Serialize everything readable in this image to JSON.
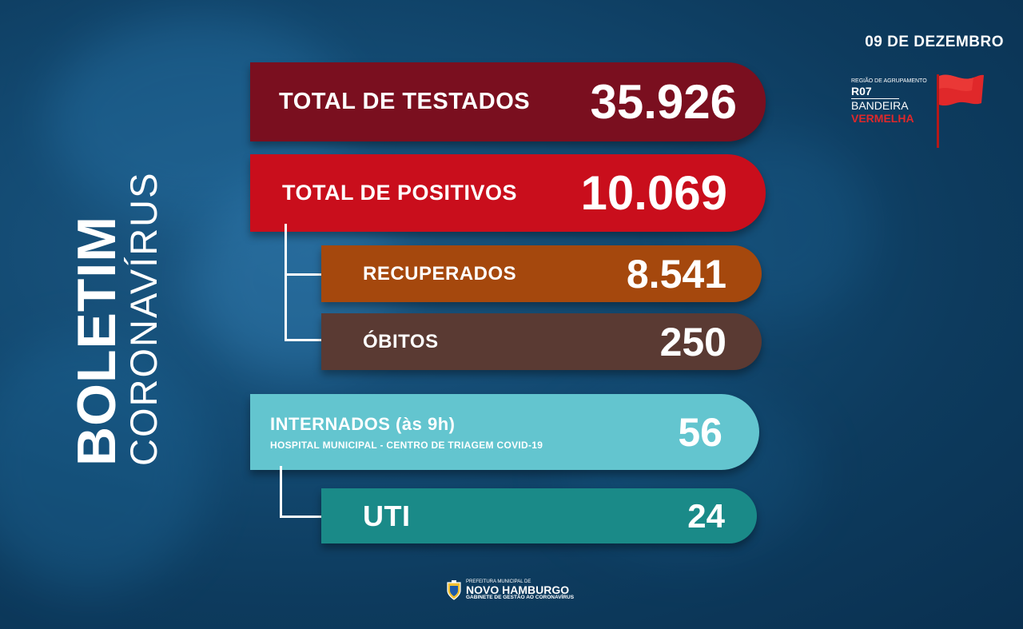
{
  "title": {
    "bold": "BOLETIM",
    "light": "CORONAVÍRUS"
  },
  "date": "09 DE DEZEMBRO",
  "region": {
    "caption": "REGIÃO DE AGRUPAMENTO",
    "code": "R07",
    "flag_word": "BANDEIRA",
    "flag_color_name": "VERMELHA",
    "flag_color": "#e0282a",
    "icon": "red-flag-icon"
  },
  "stats": {
    "testados": {
      "label": "TOTAL DE TESTADOS",
      "value": "35.926",
      "color": "#7a0f1f"
    },
    "positivos": {
      "label": "TOTAL DE POSITIVOS",
      "value": "10.069",
      "color": "#c90e1c"
    },
    "recuperados": {
      "label": "RECUPERADOS",
      "value": "8.541",
      "color": "#a5480d"
    },
    "obitos": {
      "label": "ÓBITOS",
      "value": "250",
      "color": "#5a3a33"
    },
    "internados": {
      "label": "INTERNADOS (às 9h)",
      "sublabel": "HOSPITAL MUNICIPAL - CENTRO DE TRIAGEM COVID-19",
      "value": "56",
      "color": "#63c5cf"
    },
    "uti": {
      "label": "UTI",
      "value": "24",
      "color": "#1a8a88"
    }
  },
  "footer": {
    "caption": "PREFEITURA MUNICIPAL DE",
    "city": "NOVO HAMBURGO",
    "sub": "GABINETE DE GESTÃO AO CORONAVÍRUS",
    "icon": "city-crest-icon"
  }
}
